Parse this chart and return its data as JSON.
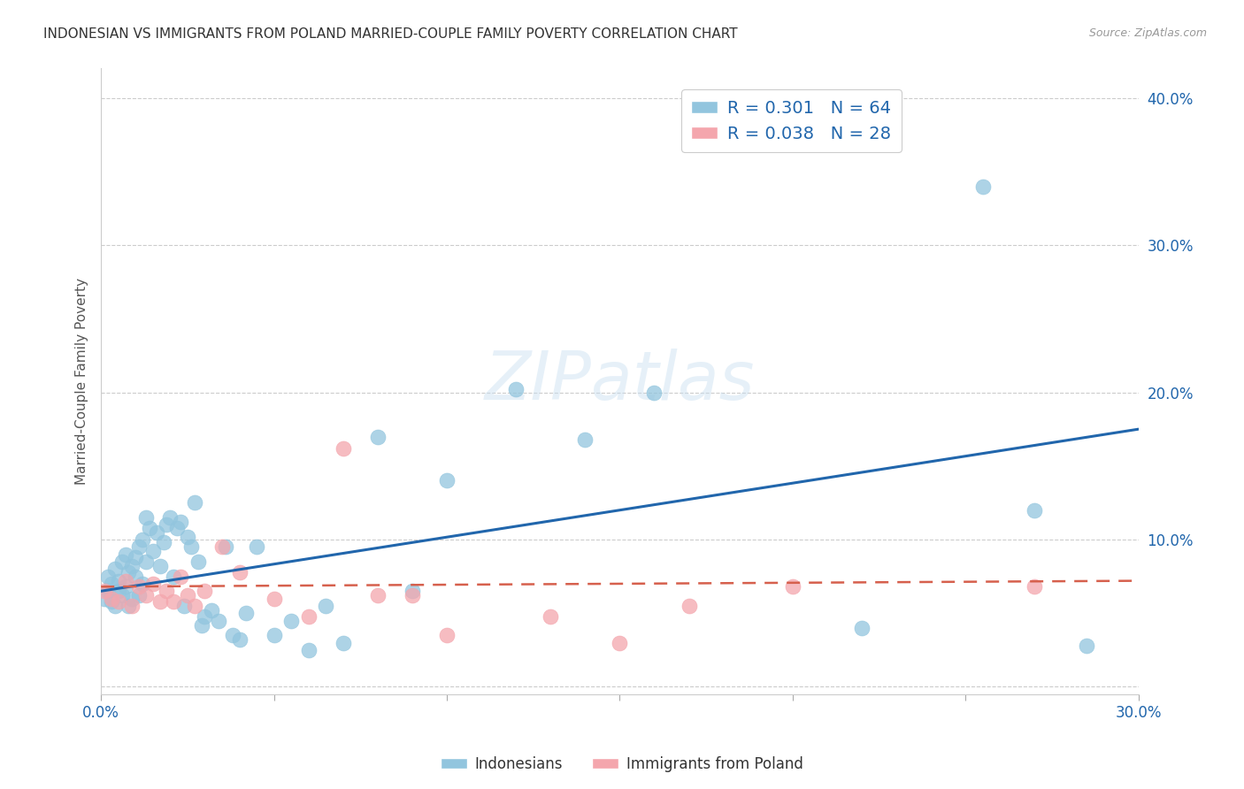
{
  "title": "INDONESIAN VS IMMIGRANTS FROM POLAND MARRIED-COUPLE FAMILY POVERTY CORRELATION CHART",
  "source": "Source: ZipAtlas.com",
  "ylabel": "Married-Couple Family Poverty",
  "xlim": [
    0.0,
    0.3
  ],
  "ylim": [
    -0.005,
    0.42
  ],
  "xticks": [
    0.0,
    0.05,
    0.1,
    0.15,
    0.2,
    0.25,
    0.3
  ],
  "xtick_labels": [
    "0.0%",
    "",
    "",
    "",
    "",
    "",
    "30.0%"
  ],
  "yticks": [
    0.0,
    0.1,
    0.2,
    0.3,
    0.4
  ],
  "ytick_labels": [
    "",
    "10.0%",
    "20.0%",
    "30.0%",
    "40.0%"
  ],
  "blue_color": "#92c5de",
  "pink_color": "#f4a6ad",
  "blue_line_color": "#2166ac",
  "pink_line_color": "#d6604d",
  "R_blue": 0.301,
  "N_blue": 64,
  "R_pink": 0.038,
  "N_pink": 28,
  "legend_label_blue": "Indonesians",
  "legend_label_pink": "Immigrants from Poland",
  "watermark": "ZIPatlas",
  "blue_scatter_x": [
    0.001,
    0.002,
    0.002,
    0.003,
    0.003,
    0.004,
    0.004,
    0.005,
    0.005,
    0.006,
    0.006,
    0.007,
    0.007,
    0.008,
    0.008,
    0.009,
    0.009,
    0.01,
    0.01,
    0.011,
    0.011,
    0.012,
    0.012,
    0.013,
    0.013,
    0.014,
    0.015,
    0.016,
    0.017,
    0.018,
    0.019,
    0.02,
    0.021,
    0.022,
    0.023,
    0.024,
    0.025,
    0.026,
    0.027,
    0.028,
    0.029,
    0.03,
    0.032,
    0.034,
    0.036,
    0.038,
    0.04,
    0.042,
    0.045,
    0.05,
    0.055,
    0.06,
    0.065,
    0.07,
    0.08,
    0.09,
    0.1,
    0.12,
    0.14,
    0.16,
    0.22,
    0.255,
    0.27,
    0.285
  ],
  "blue_scatter_y": [
    0.06,
    0.075,
    0.065,
    0.07,
    0.058,
    0.08,
    0.055,
    0.072,
    0.065,
    0.085,
    0.062,
    0.09,
    0.068,
    0.078,
    0.055,
    0.082,
    0.06,
    0.088,
    0.075,
    0.095,
    0.062,
    0.1,
    0.07,
    0.115,
    0.085,
    0.108,
    0.092,
    0.105,
    0.082,
    0.098,
    0.11,
    0.115,
    0.075,
    0.108,
    0.112,
    0.055,
    0.102,
    0.095,
    0.125,
    0.085,
    0.042,
    0.048,
    0.052,
    0.045,
    0.095,
    0.035,
    0.032,
    0.05,
    0.095,
    0.035,
    0.045,
    0.025,
    0.055,
    0.03,
    0.17,
    0.065,
    0.14,
    0.202,
    0.168,
    0.2,
    0.04,
    0.34,
    0.12,
    0.028
  ],
  "pink_scatter_x": [
    0.001,
    0.003,
    0.005,
    0.007,
    0.009,
    0.011,
    0.013,
    0.015,
    0.017,
    0.019,
    0.021,
    0.023,
    0.025,
    0.027,
    0.03,
    0.035,
    0.04,
    0.05,
    0.06,
    0.07,
    0.08,
    0.09,
    0.1,
    0.13,
    0.15,
    0.17,
    0.2,
    0.27
  ],
  "pink_scatter_y": [
    0.065,
    0.06,
    0.058,
    0.072,
    0.055,
    0.068,
    0.062,
    0.07,
    0.058,
    0.065,
    0.058,
    0.075,
    0.062,
    0.055,
    0.065,
    0.095,
    0.078,
    0.06,
    0.048,
    0.162,
    0.062,
    0.062,
    0.035,
    0.048,
    0.03,
    0.055,
    0.068,
    0.068
  ],
  "blue_trend_x": [
    0.0,
    0.3
  ],
  "blue_trend_y_start": 0.065,
  "blue_trend_y_end": 0.175,
  "pink_trend_y_start": 0.068,
  "pink_trend_y_end": 0.072
}
